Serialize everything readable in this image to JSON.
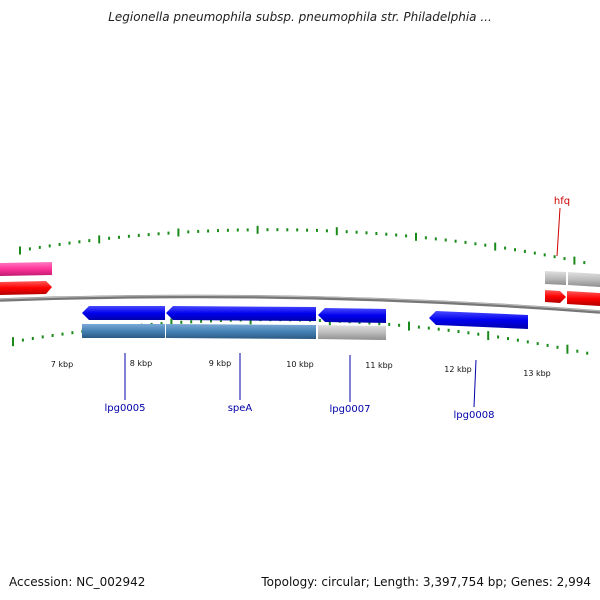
{
  "title": "Legionella pneumophila subsp. pneumophila str. Philadelphia ...",
  "footer": {
    "accession": "Accession: NC_002942",
    "summary": "Topology: circular; Length: 3,397,754 bp; Genes: 2,994"
  },
  "colors": {
    "forward_gene": "#ff0000",
    "reverse_gene": "#0000ee",
    "cds_steel": "#4682b4",
    "cds_gray": "#b8b8b8",
    "pink_gene": "#ff3399",
    "tick": "#1a8a1a",
    "backbone": "#777777",
    "label_blue": "#0000aa",
    "label_red": "#cc0000"
  },
  "scale": {
    "unit": "kbp",
    "labels": [
      "7 kbp",
      "8 kbp",
      "9 kbp",
      "10 kbp",
      "11 kbp",
      "12 kbp",
      "13 kbp"
    ]
  },
  "genes": [
    {
      "name": "lpg0005",
      "label": "lpg0005"
    },
    {
      "name": "speA",
      "label": "speA"
    },
    {
      "name": "lpg0007",
      "label": "lpg0007"
    },
    {
      "name": "lpg0008",
      "label": "lpg0008"
    },
    {
      "name": "hfq",
      "label": "hfq"
    }
  ]
}
